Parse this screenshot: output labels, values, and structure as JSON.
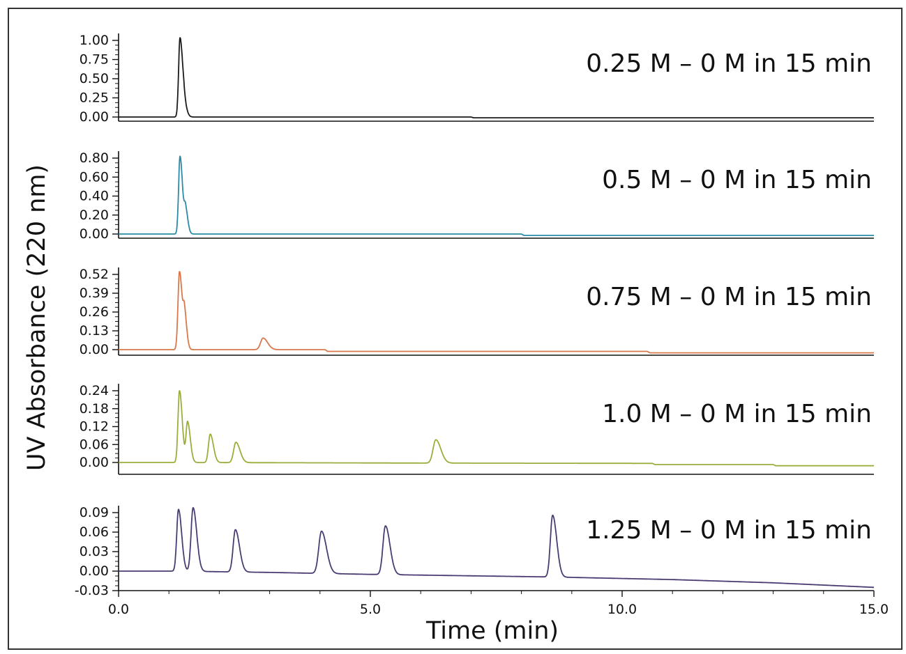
{
  "chart_data": {
    "type": "line",
    "xlabel": "Time (min)",
    "ylabel": "UV Absorbance (220 nm)",
    "xlim": [
      0,
      15
    ],
    "xticks": [
      {
        "value": 0,
        "label": "0.0"
      },
      {
        "value": 5,
        "label": "5.0"
      },
      {
        "value": 10,
        "label": "10.0"
      },
      {
        "value": 15,
        "label": "15.0"
      }
    ],
    "grid": false,
    "panels": [
      {
        "annotation": "0.25 M – 0 M in 15 min",
        "color": "#1a1a1a",
        "ylim": [
          0,
          1.0
        ],
        "yticks": [
          "0.00",
          "0.25",
          "0.50",
          "0.75",
          "1.00"
        ],
        "baseline": [
          [
            0,
            0.0
          ],
          [
            1.15,
            0.0
          ],
          [
            7.0,
            0.0
          ],
          [
            7.05,
            -0.01
          ],
          [
            15,
            -0.01
          ]
        ],
        "peaks": [
          {
            "t": 1.22,
            "h": 1.03,
            "w": 0.028
          },
          {
            "t": 1.3,
            "h": 0.15,
            "w": 0.03
          }
        ]
      },
      {
        "annotation": "0.5 M – 0 M in 15 min",
        "color": "#2b8aa6",
        "ylim": [
          0,
          0.8
        ],
        "yticks": [
          "0.00",
          "0.20",
          "0.40",
          "0.60",
          "0.80"
        ],
        "baseline": [
          [
            0,
            0.0
          ],
          [
            1.15,
            0.0
          ],
          [
            8.0,
            0.0
          ],
          [
            8.05,
            -0.015
          ],
          [
            15,
            -0.015
          ]
        ],
        "peaks": [
          {
            "t": 1.22,
            "h": 0.82,
            "w": 0.028
          },
          {
            "t": 1.33,
            "h": 0.25,
            "w": 0.025
          }
        ]
      },
      {
        "annotation": "0.75 M – 0 M in 15 min",
        "color": "#d8784a",
        "ylim": [
          0,
          0.52
        ],
        "yticks": [
          "0.00",
          "0.13",
          "0.26",
          "0.39",
          "0.52"
        ],
        "baseline": [
          [
            0,
            0.0
          ],
          [
            1.15,
            0.0
          ],
          [
            4.1,
            0.0
          ],
          [
            4.15,
            -0.012
          ],
          [
            10.5,
            -0.012
          ],
          [
            10.55,
            -0.022
          ],
          [
            15,
            -0.022
          ]
        ],
        "peaks": [
          {
            "t": 1.21,
            "h": 0.54,
            "w": 0.03
          },
          {
            "t": 1.31,
            "h": 0.22,
            "w": 0.025
          },
          {
            "t": 2.87,
            "h": 0.08,
            "w": 0.05
          }
        ]
      },
      {
        "annotation": "1.0 M – 0 M in 15 min",
        "color": "#9aae3c",
        "ylim": [
          0,
          0.24
        ],
        "yticks": [
          "0.00",
          "0.06",
          "0.12",
          "0.18",
          "0.24"
        ],
        "baseline": [
          [
            0,
            0.0
          ],
          [
            1.15,
            0.0
          ],
          [
            6.0,
            -0.002
          ],
          [
            10.6,
            -0.003
          ],
          [
            10.65,
            -0.007
          ],
          [
            13.0,
            -0.007
          ],
          [
            13.05,
            -0.011
          ],
          [
            15,
            -0.011
          ]
        ],
        "peaks": [
          {
            "t": 1.21,
            "h": 0.24,
            "w": 0.03
          },
          {
            "t": 1.37,
            "h": 0.135,
            "w": 0.03
          },
          {
            "t": 1.82,
            "h": 0.095,
            "w": 0.035
          },
          {
            "t": 2.33,
            "h": 0.068,
            "w": 0.045
          },
          {
            "t": 6.3,
            "h": 0.078,
            "w": 0.055
          }
        ]
      },
      {
        "annotation": "1.25 M – 0 M in 15 min",
        "color": "#4a3b73",
        "ylim": [
          -0.03,
          0.09
        ],
        "yticks": [
          "-0.03",
          "0.00",
          "0.03",
          "0.06",
          "0.09"
        ],
        "baseline": [
          [
            0,
            0.0
          ],
          [
            1.15,
            0.0
          ],
          [
            3.0,
            -0.002
          ],
          [
            5.0,
            -0.005
          ],
          [
            8.6,
            -0.009
          ],
          [
            11.0,
            -0.013
          ],
          [
            13.0,
            -0.018
          ],
          [
            15,
            -0.025
          ]
        ],
        "peaks": [
          {
            "t": 1.19,
            "h": 0.095,
            "w": 0.035
          },
          {
            "t": 1.48,
            "h": 0.098,
            "w": 0.04
          },
          {
            "t": 2.32,
            "h": 0.065,
            "w": 0.045
          },
          {
            "t": 4.03,
            "h": 0.065,
            "w": 0.055
          },
          {
            "t": 5.3,
            "h": 0.075,
            "w": 0.05
          },
          {
            "t": 8.62,
            "h": 0.095,
            "w": 0.045
          }
        ]
      }
    ]
  }
}
